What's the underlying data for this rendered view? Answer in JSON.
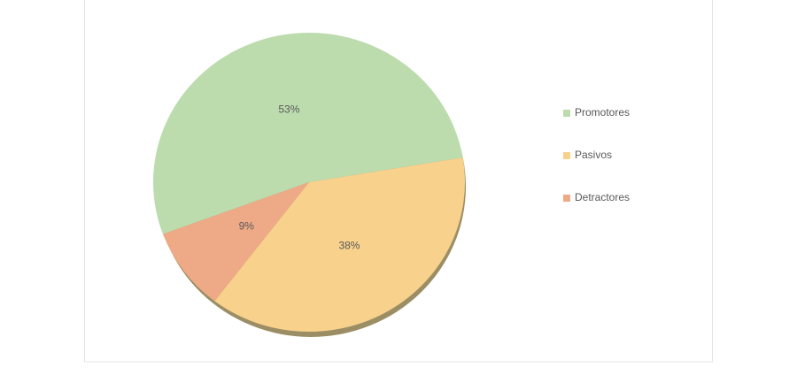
{
  "chart_data": {
    "type": "pie",
    "categories": [
      "Promotores",
      "Pasivos",
      "Detractores"
    ],
    "values": [
      53,
      38,
      9
    ],
    "value_labels": [
      "53%",
      "38%",
      "9%"
    ],
    "colors": [
      "#bcdcae",
      "#f8d18c",
      "#eeaa86"
    ],
    "legend": "right"
  }
}
